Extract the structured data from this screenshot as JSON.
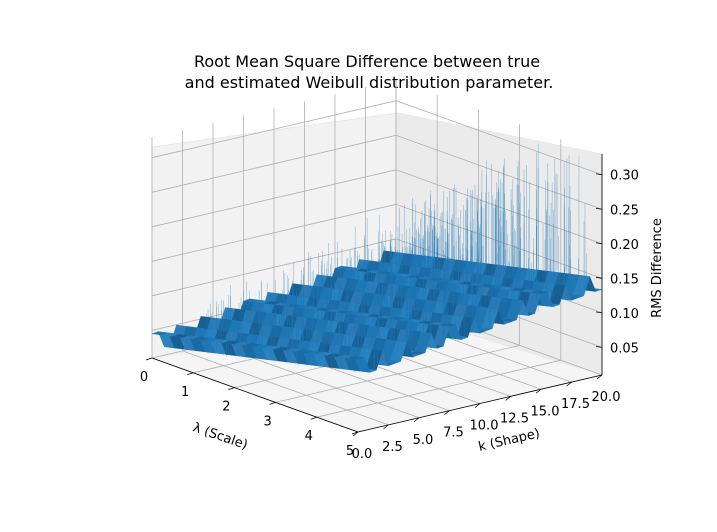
{
  "chart_data": {
    "type": "surface3d",
    "title_line1": "Root Mean Square Difference between true",
    "title_line2": "and estimated Weibull distribution parameter.",
    "xlabel": "λ (Scale)",
    "ylabel": "k (Shape)",
    "zlabel": "RMS Difference",
    "x_ticks": [
      "0",
      "1",
      "2",
      "3",
      "4",
      "5"
    ],
    "y_ticks": [
      "0.0",
      "2.5",
      "5.0",
      "7.5",
      "10.0",
      "12.5",
      "15.0",
      "17.5",
      "20.0"
    ],
    "z_ticks": [
      "0.05",
      "0.10",
      "0.15",
      "0.20",
      "0.25",
      "0.30"
    ],
    "xlim": [
      0,
      5
    ],
    "ylim": [
      0,
      20
    ],
    "zlim": [
      0.01,
      0.33
    ],
    "surface_color": "#1f77b4",
    "grid": true
  }
}
